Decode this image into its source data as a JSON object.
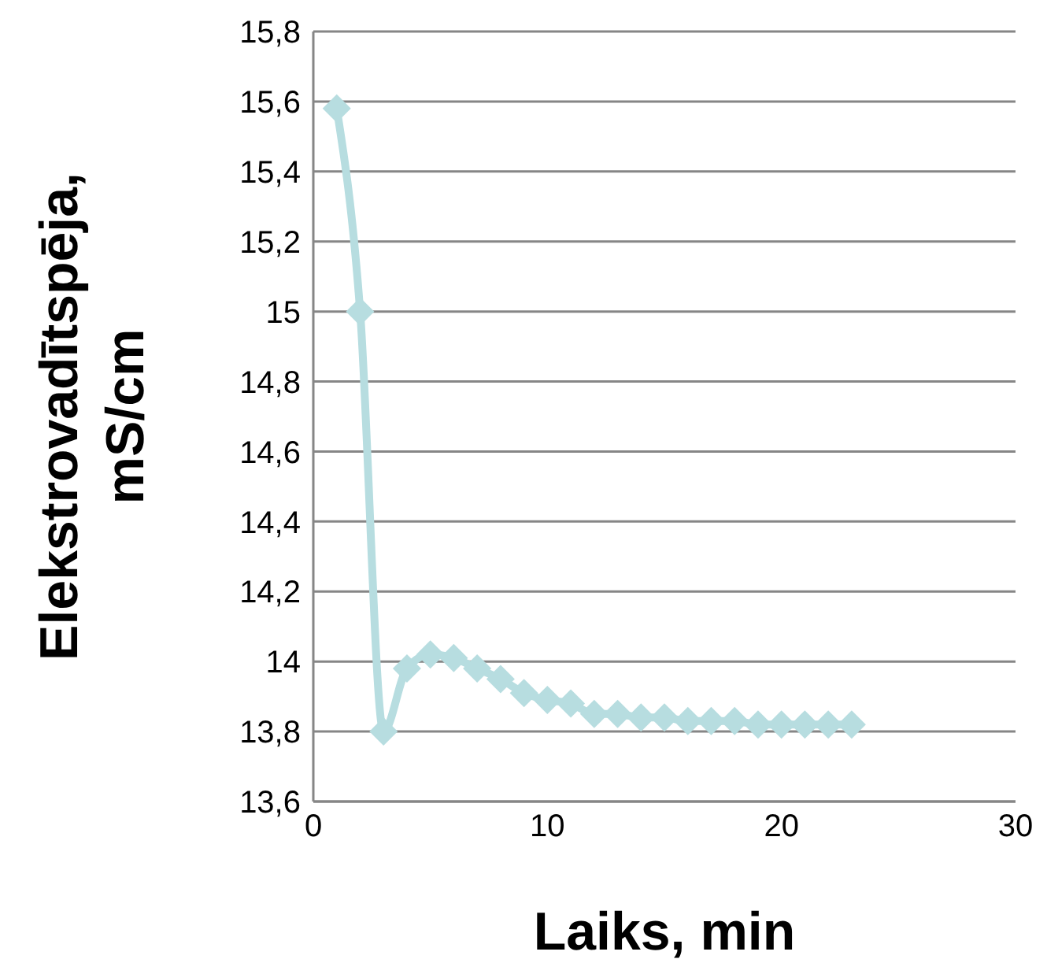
{
  "chart_data": {
    "type": "line",
    "xlabel": "Laiks, min",
    "ylabel": "Elekstrovadītspēja, mS/cm",
    "x": [
      1,
      2,
      3,
      4,
      5,
      6,
      7,
      8,
      9,
      10,
      11,
      12,
      13,
      14,
      15,
      16,
      17,
      18,
      19,
      20,
      21,
      22,
      23
    ],
    "series": [
      {
        "color": "#b7dde0",
        "values": [
          15.58,
          15.0,
          13.8,
          13.98,
          14.02,
          14.01,
          13.98,
          13.95,
          13.91,
          13.89,
          13.88,
          13.85,
          13.85,
          13.84,
          13.84,
          13.83,
          13.83,
          13.83,
          13.82,
          13.82,
          13.82,
          13.82,
          13.82
        ]
      }
    ],
    "xlim": [
      0,
      30
    ],
    "xticks": [
      0,
      10,
      20,
      30
    ],
    "ylim": [
      13.6,
      15.8
    ],
    "yticks": [
      {
        "value": 13.6,
        "label": "13,6"
      },
      {
        "value": 13.8,
        "label": "13,8"
      },
      {
        "value": 14,
        "label": "14"
      },
      {
        "value": 14.2,
        "label": "14,2"
      },
      {
        "value": 14.4,
        "label": "14,4"
      },
      {
        "value": 14.6,
        "label": "14,6"
      },
      {
        "value": 14.8,
        "label": "14,8"
      },
      {
        "value": 15,
        "label": "15"
      },
      {
        "value": 15.2,
        "label": "15,2"
      },
      {
        "value": 15.4,
        "label": "15,4"
      },
      {
        "value": 15.6,
        "label": "15,6"
      },
      {
        "value": 15.8,
        "label": "15,8"
      }
    ],
    "grid": "y",
    "marker": "diamond",
    "line_style": "solid"
  }
}
